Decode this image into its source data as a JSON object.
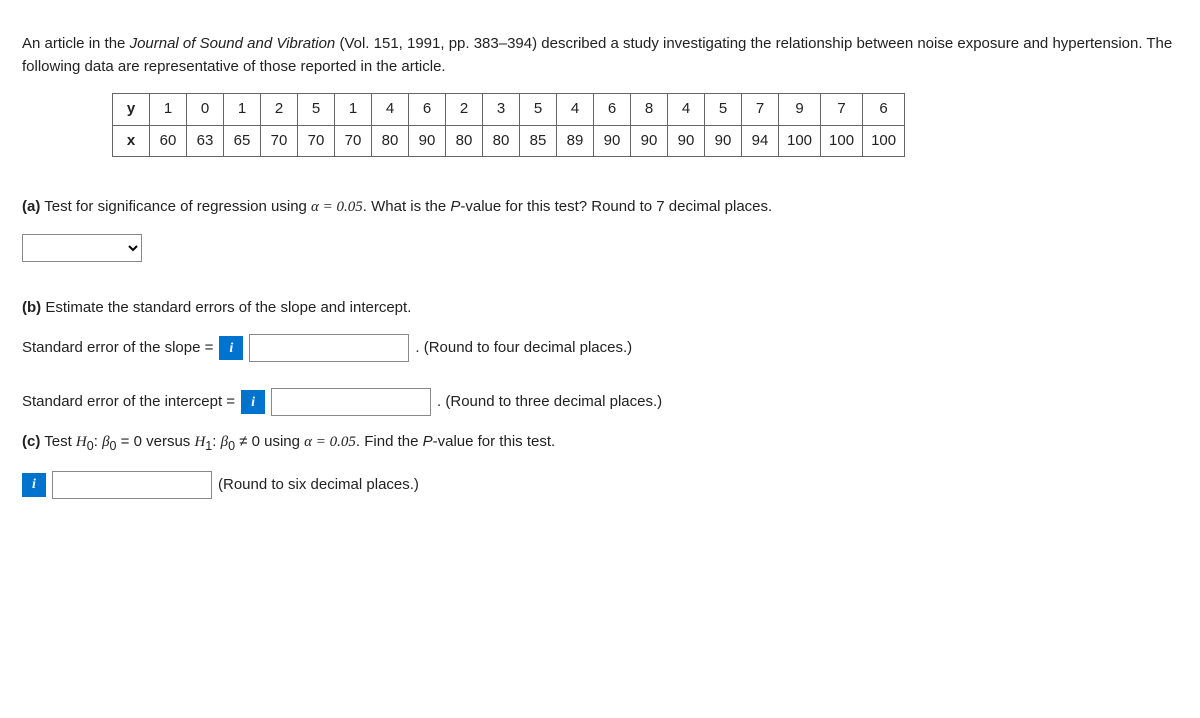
{
  "intro": {
    "pre": "An article in the ",
    "journal": "Journal of Sound and Vibration",
    "post": " (Vol. 151, 1991, pp. 383–394) described a study investigating the relationship between noise exposure and hypertension. The following data are representative of those reported in the article."
  },
  "table": {
    "row_y_label": "y",
    "row_x_label": "x",
    "y": [
      "1",
      "0",
      "1",
      "2",
      "5",
      "1",
      "4",
      "6",
      "2",
      "3",
      "5",
      "4",
      "6",
      "8",
      "4",
      "5",
      "7",
      "9",
      "7",
      "6"
    ],
    "x": [
      "60",
      "63",
      "65",
      "70",
      "70",
      "70",
      "80",
      "90",
      "80",
      "80",
      "85",
      "89",
      "90",
      "90",
      "90",
      "90",
      "94",
      "100",
      "100",
      "100"
    ]
  },
  "a": {
    "label": "(a)",
    "text_pre": " Test for significance of regression using ",
    "alpha_eq": "α = 0.05",
    "text_post": ". What is the ",
    "pval_word": "P",
    "text_post2": "-value for this test? Round to 7 decimal places."
  },
  "b": {
    "label": "(b)",
    "text": " Estimate the standard errors of the slope and intercept.",
    "slope_label_pre": "Standard error of the slope = ",
    "slope_round": " . (Round to four decimal places.)",
    "intercept_label_pre": "Standard error of the intercept = ",
    "intercept_round": " . (Round to three decimal places.)"
  },
  "c": {
    "label": "(c)",
    "text_pre": " Test ",
    "h0": "H",
    "h0_sub": "0",
    "colon": ": ",
    "beta": "β",
    "beta_sub": "0",
    "eq0": " = 0 versus ",
    "h1": "H",
    "h1_sub": "1",
    "neq": " ≠ 0 using ",
    "alpha_eq": "α = 0.05",
    "text_post": ". Find the ",
    "pval_word": "P",
    "text_post2": "-value for this test.",
    "round": "(Round to six decimal places.)"
  },
  "info_icon": "i"
}
